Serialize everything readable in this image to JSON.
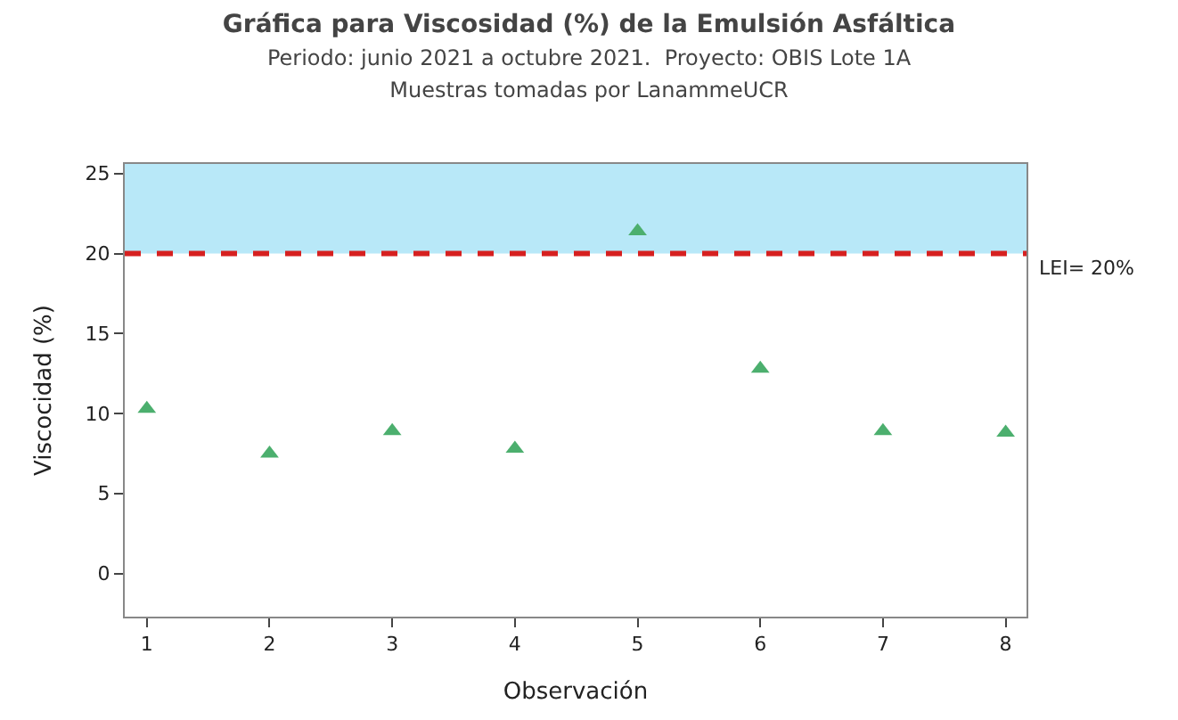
{
  "chart_data": {
    "type": "scatter",
    "title": "Gráfica para Viscosidad (%) de la Emulsión Asfáltica",
    "subtitle": "Periodo: junio 2021 a octubre 2021.  Proyecto: OBIS Lote 1A\nMuestras tomadas por LanammeUCR",
    "xlabel": "Observación",
    "ylabel": "Viscocidad (%)",
    "x": [
      1,
      2,
      3,
      4,
      5,
      6,
      7,
      8
    ],
    "series": [
      {
        "color": "#4caf6e",
        "values": [
          10.3,
          7.5,
          8.9,
          7.8,
          21.4,
          12.8,
          8.9,
          8.8
        ]
      }
    ],
    "xlim": [
      0.82,
      8.17
    ],
    "xticks": [
      1,
      2,
      3,
      4,
      5,
      6,
      7,
      8
    ],
    "ylim": [
      -2.7,
      25.6
    ],
    "yticks": [
      0,
      5,
      10,
      15,
      20,
      25
    ],
    "ref_lines": [
      {
        "axis": "y",
        "value": 20,
        "label": "LEI= 20%",
        "color": "#d62020",
        "line_style": "dashed"
      }
    ],
    "bands": [
      {
        "axis": "y",
        "from": 20,
        "to": 25.6,
        "color": "#b8e8f8"
      }
    ],
    "marker": "triangle",
    "grid": false
  }
}
